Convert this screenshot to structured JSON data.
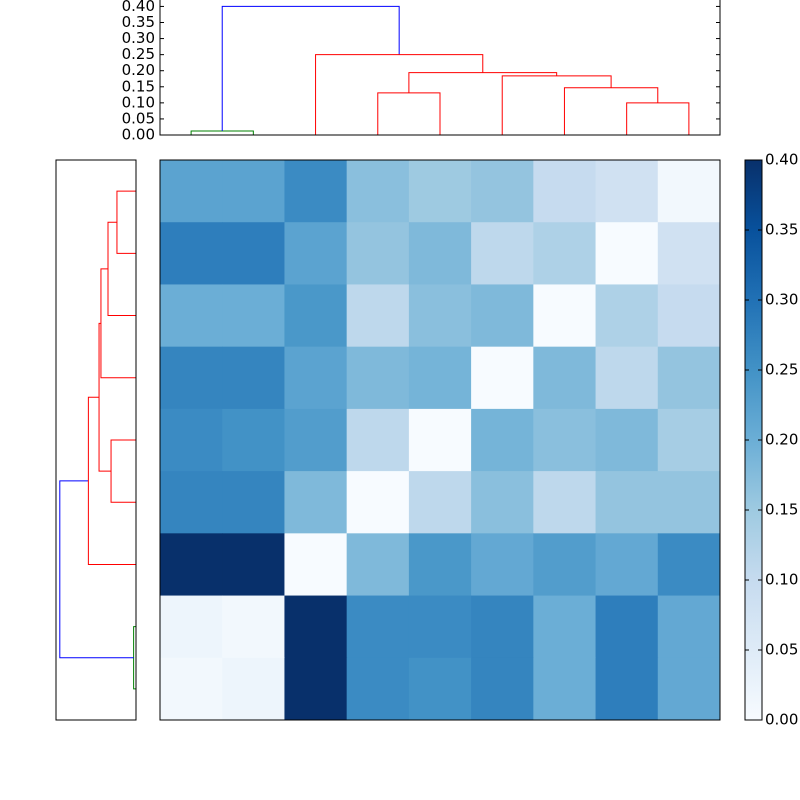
{
  "chart_data": {
    "type": "clustermap",
    "dendrogram": {
      "ylim": [
        0,
        0.42
      ],
      "yticks": [
        {
          "value": 0,
          "label": "0.00"
        },
        {
          "value": 0.05,
          "label": "0.05"
        },
        {
          "value": 0.1,
          "label": "0.10"
        },
        {
          "value": 0.15,
          "label": "0.15"
        },
        {
          "value": 0.2,
          "label": "0.20"
        },
        {
          "value": 0.25,
          "label": "0.25"
        },
        {
          "value": 0.3,
          "label": "0.30"
        },
        {
          "value": 0.35,
          "label": "0.35"
        },
        {
          "value": 0.4,
          "label": "0.40"
        }
      ],
      "links": [
        {
          "color": "#008000",
          "x": [
            0,
            0,
            1,
            1
          ],
          "y": [
            0,
            0.0125,
            0.0125,
            0
          ]
        },
        {
          "color": "#0000ff",
          "x": [
            0.5,
            0.5,
            3.34375,
            3.34375
          ],
          "y": [
            0.0125,
            0.4,
            0.4,
            0.25
          ]
        },
        {
          "color": "#ff0000",
          "x": [
            2,
            2,
            4.6875,
            4.6875
          ],
          "y": [
            0,
            0.25,
            0.25,
            0.194
          ]
        },
        {
          "color": "#ff0000",
          "x": [
            3,
            3,
            4,
            4
          ],
          "y": [
            0,
            0.131,
            0.131,
            0
          ]
        },
        {
          "color": "#ff0000",
          "x": [
            3.5,
            3.5,
            5.875,
            5.875
          ],
          "y": [
            0.131,
            0.194,
            0.194,
            0.184
          ]
        },
        {
          "color": "#ff0000",
          "x": [
            5,
            5,
            6.75,
            6.75
          ],
          "y": [
            0,
            0.184,
            0.184,
            0.147
          ]
        },
        {
          "color": "#ff0000",
          "x": [
            6,
            6,
            7.5,
            7.5
          ],
          "y": [
            0,
            0.147,
            0.147,
            0.1
          ]
        },
        {
          "color": "#ff0000",
          "x": [
            7,
            7,
            8,
            8
          ],
          "y": [
            0,
            0.1,
            0.1,
            0
          ]
        }
      ]
    },
    "heatmap": {
      "values": [
        [
          0.22,
          0.22,
          0.26,
          0.17,
          0.15,
          0.16,
          0.1,
          0.08,
          0.01
        ],
        [
          0.28,
          0.28,
          0.22,
          0.16,
          0.18,
          0.11,
          0.13,
          0.0,
          0.08
        ],
        [
          0.2,
          0.2,
          0.24,
          0.11,
          0.17,
          0.18,
          0.0,
          0.13,
          0.1
        ],
        [
          0.27,
          0.27,
          0.22,
          0.18,
          0.19,
          0.0,
          0.18,
          0.11,
          0.16
        ],
        [
          0.26,
          0.25,
          0.23,
          0.11,
          0.0,
          0.19,
          0.17,
          0.18,
          0.14
        ],
        [
          0.27,
          0.27,
          0.18,
          0.0,
          0.11,
          0.17,
          0.11,
          0.16,
          0.16
        ],
        [
          0.4,
          0.4,
          0.0,
          0.18,
          0.24,
          0.21,
          0.23,
          0.21,
          0.26
        ],
        [
          0.02,
          0.01,
          0.4,
          0.26,
          0.26,
          0.27,
          0.2,
          0.28,
          0.21
        ],
        [
          0.01,
          0.02,
          0.4,
          0.26,
          0.25,
          0.27,
          0.2,
          0.28,
          0.21
        ]
      ],
      "colorscale": [
        "#f7fbff",
        "#deebf7",
        "#c6dbef",
        "#9ecae1",
        "#6baed6",
        "#4292c6",
        "#2171b5",
        "#08519c",
        "#08306b"
      ]
    },
    "colorbar": {
      "lim": [
        0,
        0.4
      ],
      "ticks": [
        {
          "value": 0,
          "label": "0.00"
        },
        {
          "value": 0.05,
          "label": "0.05"
        },
        {
          "value": 0.1,
          "label": "0.10"
        },
        {
          "value": 0.15,
          "label": "0.15"
        },
        {
          "value": 0.2,
          "label": "0.20"
        },
        {
          "value": 0.25,
          "label": "0.25"
        },
        {
          "value": 0.3,
          "label": "0.30"
        },
        {
          "value": 0.35,
          "label": "0.35"
        },
        {
          "value": 0.4,
          "label": "0.40"
        }
      ]
    }
  }
}
